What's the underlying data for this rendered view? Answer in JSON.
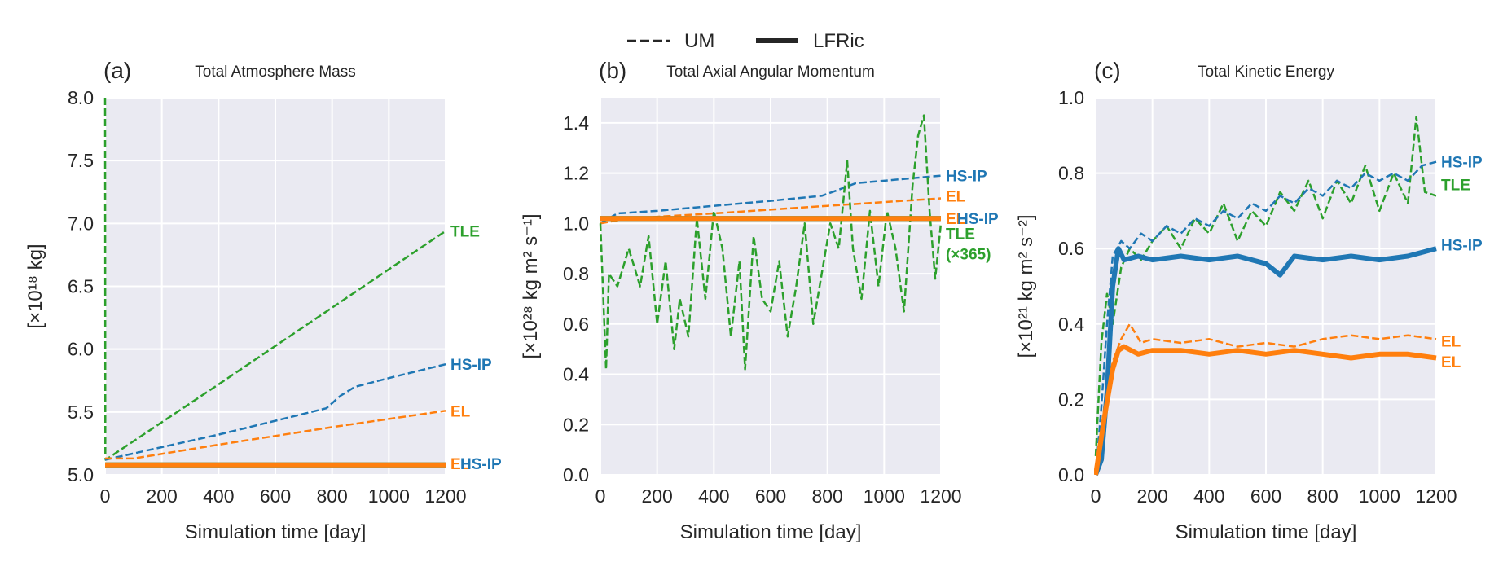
{
  "legend": {
    "placement": "top-center",
    "entries": [
      {
        "label": "UM",
        "style": "dashed"
      },
      {
        "label": "LFRic",
        "style": "solid-thick"
      }
    ]
  },
  "colors": {
    "HS-IP": "#1f77b4",
    "EL": "#ff7f0e",
    "TLE": "#2ca02c",
    "background": "#eaeaf2",
    "grid": "#ffffff"
  },
  "chart_data": [
    {
      "type": "line",
      "panel": "(a)",
      "title": "Total Atmosphere Mass",
      "xlabel": "Simulation time [day]",
      "ylabel": "[×10¹⁸ kg]",
      "xlim": [
        0,
        1200
      ],
      "ylim": [
        5.0,
        8.0
      ],
      "xticks": [
        "0",
        "200",
        "400",
        "600",
        "800",
        "1000",
        "1200"
      ],
      "yticks": [
        "5.0",
        "5.5",
        "6.0",
        "6.5",
        "7.0",
        "7.5",
        "8.0"
      ],
      "grid": true,
      "series": [
        {
          "name": "TLE",
          "model": "UM",
          "color": "#2ca02c",
          "x": [
            0,
            1,
            2,
            400,
            800,
            1200
          ],
          "y": [
            8.0,
            5.15,
            5.12,
            5.72,
            6.33,
            6.94
          ]
        },
        {
          "name": "HS-IP",
          "model": "UM",
          "color": "#1f77b4",
          "x": [
            0,
            200,
            400,
            600,
            780,
            830,
            880,
            1000,
            1200
          ],
          "y": [
            5.12,
            5.22,
            5.32,
            5.43,
            5.53,
            5.63,
            5.7,
            5.77,
            5.88
          ]
        },
        {
          "name": "EL",
          "model": "UM",
          "color": "#ff7f0e",
          "x": [
            0,
            100,
            400,
            800,
            1200
          ],
          "y": [
            5.13,
            5.13,
            5.24,
            5.38,
            5.51
          ]
        },
        {
          "name": "HS-IP",
          "model": "LFRic",
          "color": "#1f77b4",
          "x": [
            0,
            1200
          ],
          "y": [
            5.08,
            5.08
          ]
        },
        {
          "name": "TLE",
          "model": "LFRic",
          "color": "#2ca02c",
          "x": [
            0,
            1200
          ],
          "y": [
            5.08,
            5.08
          ]
        },
        {
          "name": "EL",
          "model": "LFRic",
          "color": "#ff7f0e",
          "x": [
            0,
            1200
          ],
          "y": [
            5.08,
            5.08
          ]
        }
      ],
      "annotations": [
        {
          "text": "TLE",
          "color": "#2ca02c",
          "y": 6.94
        },
        {
          "text": "HS-IP",
          "color": "#1f77b4",
          "y": 5.88
        },
        {
          "text": "EL",
          "color": "#ff7f0e",
          "y": 5.51
        },
        {
          "text": "EL",
          "color": "#ff7f0e",
          "y": 5.09
        },
        {
          "text": "HS-IP",
          "color": "#1f77b4",
          "y": 5.09
        }
      ]
    },
    {
      "type": "line",
      "panel": "(b)",
      "title": "Total Axial Angular Momentum",
      "xlabel": "Simulation time [day]",
      "ylabel": "[×10²⁸ kg m² s⁻¹]",
      "xlim": [
        0,
        1200
      ],
      "ylim": [
        0.0,
        1.5
      ],
      "xticks": [
        "0",
        "200",
        "400",
        "600",
        "800",
        "1000",
        "1200"
      ],
      "yticks": [
        "0.0",
        "0.2",
        "0.4",
        "0.6",
        "0.8",
        "1.0",
        "1.2",
        "1.4"
      ],
      "grid": true,
      "series": [
        {
          "name": "HS-IP",
          "model": "UM",
          "color": "#1f77b4",
          "x": [
            0,
            60,
            200,
            400,
            600,
            780,
            830,
            900,
            1200
          ],
          "y": [
            1.0,
            1.04,
            1.05,
            1.07,
            1.09,
            1.11,
            1.13,
            1.16,
            1.19
          ]
        },
        {
          "name": "EL",
          "model": "UM",
          "color": "#ff7f0e",
          "x": [
            0,
            100,
            400,
            800,
            1200
          ],
          "y": [
            1.0,
            1.02,
            1.04,
            1.07,
            1.1
          ]
        },
        {
          "name": "TLE",
          "model": "UM",
          "color": "#2ca02c",
          "x": [
            0,
            20,
            30,
            60,
            100,
            140,
            170,
            200,
            230,
            260,
            280,
            310,
            340,
            370,
            400,
            430,
            460,
            490,
            510,
            540,
            570,
            600,
            630,
            660,
            690,
            720,
            750,
            780,
            810,
            840,
            870,
            890,
            920,
            950,
            980,
            1010,
            1040,
            1070,
            1100,
            1120,
            1140,
            1160,
            1180,
            1200
          ],
          "y": [
            1.0,
            0.42,
            0.8,
            0.75,
            0.9,
            0.75,
            0.95,
            0.6,
            0.85,
            0.5,
            0.7,
            0.55,
            1.02,
            0.7,
            1.05,
            0.9,
            0.55,
            0.85,
            0.42,
            0.95,
            0.7,
            0.65,
            0.85,
            0.55,
            0.75,
            1.0,
            0.6,
            0.8,
            1.0,
            0.9,
            1.25,
            0.9,
            0.7,
            1.05,
            0.75,
            1.05,
            0.9,
            0.65,
            1.15,
            1.35,
            1.43,
            1.05,
            0.78,
            1.0
          ]
        },
        {
          "name": "HS-IP",
          "model": "LFRic",
          "color": "#1f77b4",
          "x": [
            0,
            1200
          ],
          "y": [
            1.02,
            1.02
          ]
        },
        {
          "name": "TLE",
          "model": "LFRic",
          "color": "#2ca02c",
          "x": [
            0,
            1200
          ],
          "y": [
            1.02,
            1.02
          ]
        },
        {
          "name": "EL",
          "model": "LFRic",
          "color": "#ff7f0e",
          "x": [
            0,
            1200
          ],
          "y": [
            1.02,
            1.02
          ]
        }
      ],
      "annotations": [
        {
          "text": "HS-IP",
          "color": "#1f77b4",
          "y": 1.19
        },
        {
          "text": "EL",
          "color": "#ff7f0e",
          "y": 1.11
        },
        {
          "text": "EL",
          "color": "#ff7f0e",
          "y": 1.02
        },
        {
          "text": "HS-IP",
          "color": "#1f77b4",
          "y": 1.02
        },
        {
          "text": "TLE",
          "color": "#2ca02c",
          "y": 0.96
        },
        {
          "text": "(×365)",
          "color": "#2ca02c",
          "y": 0.88
        }
      ]
    },
    {
      "type": "line",
      "panel": "(c)",
      "title": "Total Kinetic Energy",
      "xlabel": "Simulation time [day]",
      "ylabel": "[×10²¹ kg m² s⁻²]",
      "xlim": [
        0,
        1200
      ],
      "ylim": [
        0.0,
        1.0
      ],
      "xticks": [
        "0",
        "200",
        "400",
        "600",
        "800",
        "1000",
        "1200"
      ],
      "yticks": [
        "0.0",
        "0.2",
        "0.4",
        "0.6",
        "0.8",
        "1.0"
      ],
      "grid": true,
      "series": [
        {
          "name": "TLE",
          "model": "UM",
          "color": "#2ca02c",
          "x": [
            0,
            20,
            40,
            60,
            90,
            120,
            160,
            200,
            250,
            300,
            350,
            400,
            450,
            500,
            550,
            600,
            650,
            700,
            750,
            800,
            850,
            900,
            950,
            1000,
            1050,
            1100,
            1130,
            1160,
            1200
          ],
          "y": [
            0.05,
            0.35,
            0.48,
            0.4,
            0.55,
            0.6,
            0.57,
            0.62,
            0.66,
            0.6,
            0.68,
            0.64,
            0.72,
            0.62,
            0.7,
            0.66,
            0.75,
            0.7,
            0.78,
            0.68,
            0.78,
            0.72,
            0.82,
            0.7,
            0.8,
            0.72,
            0.95,
            0.75,
            0.74
          ]
        },
        {
          "name": "HS-IP",
          "model": "UM",
          "color": "#1f77b4",
          "x": [
            0,
            20,
            40,
            60,
            90,
            120,
            160,
            200,
            250,
            300,
            350,
            400,
            450,
            500,
            550,
            600,
            650,
            700,
            750,
            800,
            850,
            900,
            950,
            1000,
            1050,
            1100,
            1150,
            1200
          ],
          "y": [
            0.0,
            0.18,
            0.4,
            0.58,
            0.62,
            0.6,
            0.64,
            0.62,
            0.66,
            0.64,
            0.68,
            0.66,
            0.7,
            0.68,
            0.72,
            0.7,
            0.74,
            0.72,
            0.76,
            0.74,
            0.78,
            0.76,
            0.8,
            0.78,
            0.8,
            0.78,
            0.82,
            0.83
          ]
        },
        {
          "name": "EL",
          "model": "UM",
          "color": "#ff7f0e",
          "x": [
            0,
            30,
            60,
            90,
            120,
            160,
            200,
            300,
            400,
            500,
            600,
            700,
            800,
            900,
            1000,
            1100,
            1200
          ],
          "y": [
            0.0,
            0.18,
            0.3,
            0.36,
            0.4,
            0.35,
            0.36,
            0.35,
            0.36,
            0.34,
            0.35,
            0.34,
            0.36,
            0.37,
            0.36,
            0.37,
            0.36
          ]
        },
        {
          "name": "HS-IP",
          "model": "LFRic",
          "color": "#1f77b4",
          "x": [
            0,
            20,
            40,
            60,
            80,
            100,
            150,
            200,
            300,
            400,
            500,
            600,
            650,
            700,
            800,
            900,
            1000,
            1100,
            1200
          ],
          "y": [
            0.0,
            0.04,
            0.22,
            0.5,
            0.6,
            0.57,
            0.58,
            0.57,
            0.58,
            0.57,
            0.58,
            0.56,
            0.53,
            0.58,
            0.57,
            0.58,
            0.57,
            0.58,
            0.6
          ]
        },
        {
          "name": "EL",
          "model": "LFRic",
          "color": "#ff7f0e",
          "x": [
            0,
            30,
            60,
            80,
            100,
            150,
            200,
            300,
            400,
            500,
            600,
            700,
            800,
            900,
            1000,
            1100,
            1200
          ],
          "y": [
            0.0,
            0.15,
            0.28,
            0.33,
            0.34,
            0.32,
            0.33,
            0.33,
            0.32,
            0.33,
            0.32,
            0.33,
            0.32,
            0.31,
            0.32,
            0.32,
            0.31
          ]
        }
      ],
      "annotations": [
        {
          "text": "HS-IP",
          "color": "#1f77b4",
          "y": 0.83
        },
        {
          "text": "TLE",
          "color": "#2ca02c",
          "y": 0.77
        },
        {
          "text": "HS-IP",
          "color": "#1f77b4",
          "y": 0.61
        },
        {
          "text": "EL",
          "color": "#ff7f0e",
          "y": 0.355
        },
        {
          "text": "EL",
          "color": "#ff7f0e",
          "y": 0.3
        }
      ]
    }
  ]
}
